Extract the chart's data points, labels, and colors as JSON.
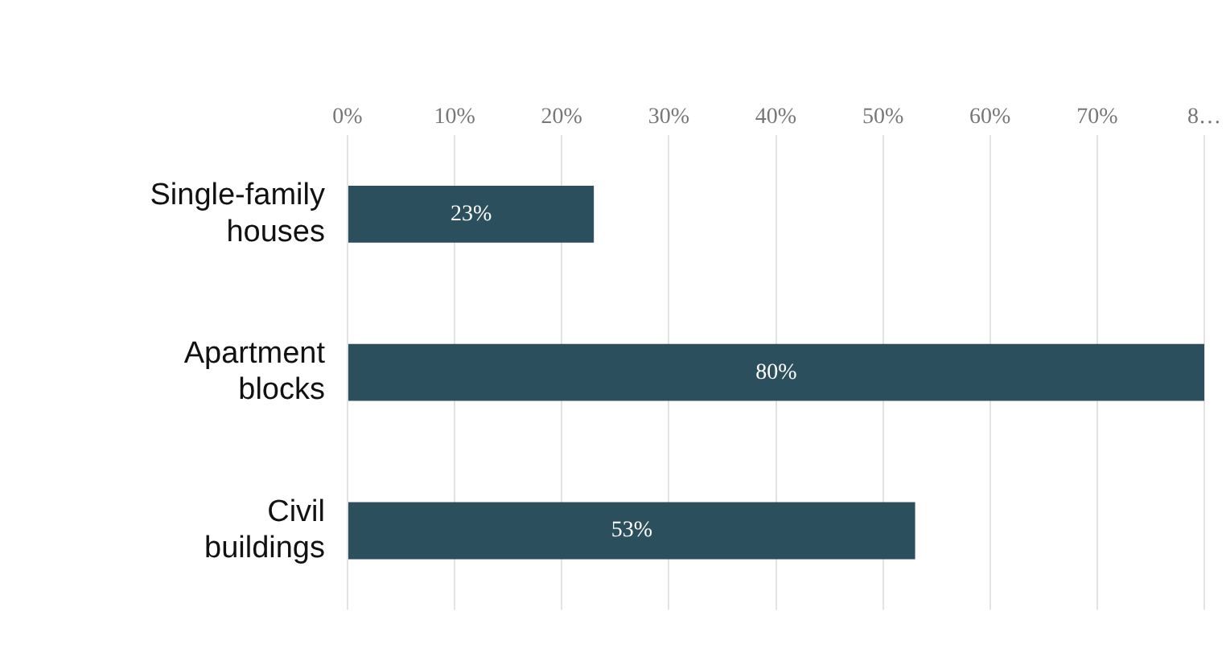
{
  "chart_data": {
    "type": "bar",
    "orientation": "horizontal",
    "categories": [
      "Single-family houses",
      "Apartment blocks",
      "Civil buildings"
    ],
    "values": [
      23,
      80,
      53
    ],
    "value_labels": [
      "23%",
      "80%",
      "53%"
    ],
    "color": "#2b4f5c",
    "xlim": [
      0,
      80
    ],
    "xticks": [
      {
        "value": 0,
        "label": "0%"
      },
      {
        "value": 10,
        "label": "10%"
      },
      {
        "value": 20,
        "label": "20%"
      },
      {
        "value": 30,
        "label": "30%"
      },
      {
        "value": 40,
        "label": "40%"
      },
      {
        "value": 50,
        "label": "50%"
      },
      {
        "value": 60,
        "label": "60%"
      },
      {
        "value": 70,
        "label": "70%"
      },
      {
        "value": 80,
        "label": "8…"
      }
    ],
    "grid": "x",
    "legend": false
  }
}
